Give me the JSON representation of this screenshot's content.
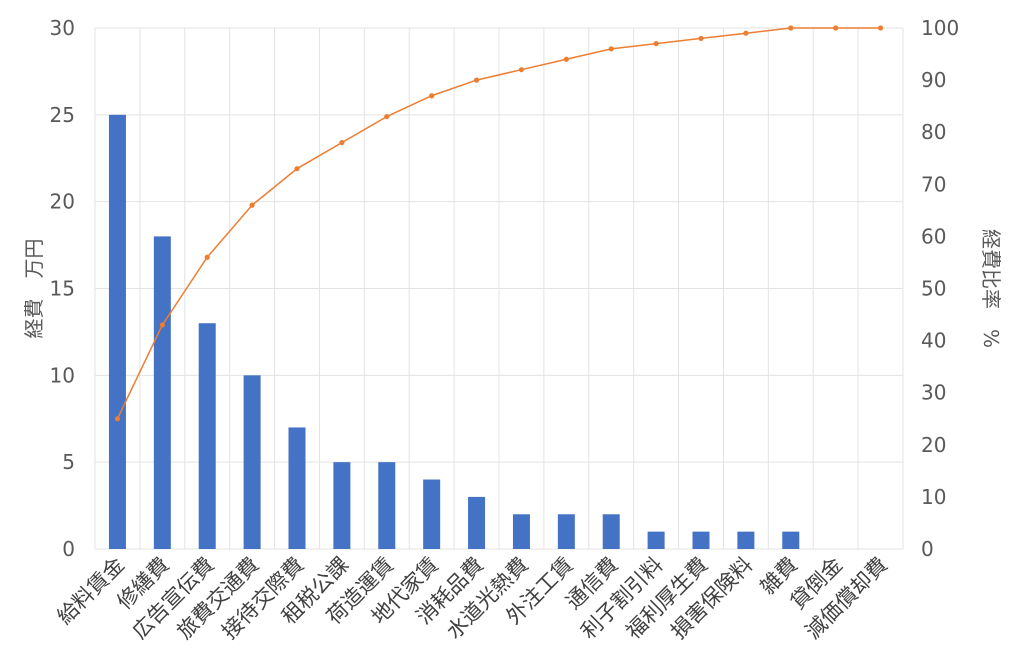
{
  "chart_data": {
    "type": "bar",
    "categories": [
      "給料賃金",
      "修繕費",
      "広告宣伝費",
      "旅費交通費",
      "接待交際費",
      "租税公課",
      "荷造運賃",
      "地代家賃",
      "消耗品費",
      "水道光熱費",
      "外注工賃",
      "通信費",
      "利子割引料",
      "福利厚生費",
      "損害保険料",
      "雑費",
      "貸倒金",
      "減価償却費"
    ],
    "series": [
      {
        "values": [
          25,
          18,
          13,
          10,
          7,
          5,
          5,
          4,
          3,
          2,
          2,
          2,
          1,
          1,
          1,
          1,
          0,
          0
        ],
        "axis": "left",
        "kind": "bar",
        "color": "#4472C4"
      },
      {
        "values": [
          25,
          43,
          56,
          66,
          73,
          78,
          83,
          87,
          90,
          92,
          94,
          96,
          97,
          98,
          99,
          100,
          100,
          100
        ],
        "axis": "right",
        "kind": "line",
        "color": "#ED7D31"
      }
    ],
    "ylabel": "経費　万円",
    "y2label": "経費比率　%",
    "xlabel": "",
    "title": "",
    "ylim": [
      0,
      30
    ],
    "y2lim": [
      0,
      100
    ],
    "yticks": [
      "0",
      "5",
      "10",
      "15",
      "20",
      "25",
      "30"
    ],
    "y2ticks": [
      "0",
      "10",
      "20",
      "30",
      "40",
      "50",
      "60",
      "70",
      "80",
      "90",
      "100"
    ],
    "grid": true,
    "legend": "none"
  }
}
